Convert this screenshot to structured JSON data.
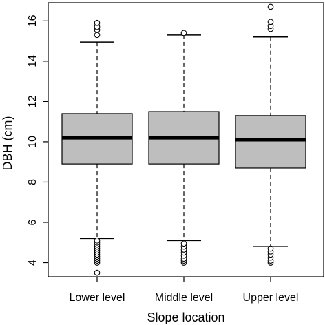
{
  "chart_data": {
    "type": "box",
    "title": "",
    "xlabel": "Slope location",
    "ylabel": "DBH (cm)",
    "ylim": [
      3.3,
      16.9
    ],
    "yticks": [
      "4",
      "6",
      "8",
      "10",
      "12",
      "14",
      "16"
    ],
    "grid": false,
    "box_fill": "#bebebe",
    "categories": [
      "Lower level",
      "Middle level",
      "Upper level"
    ],
    "boxes": [
      {
        "category": "Lower level",
        "whisker_low": 5.2,
        "q1": 8.9,
        "median": 10.2,
        "q3": 11.4,
        "whisker_high": 14.95,
        "outliers_high": [
          15.3,
          15.55,
          15.7,
          15.9
        ],
        "outliers_low": [
          3.5,
          4.0,
          4.1,
          4.2,
          4.3,
          4.4,
          4.5,
          4.6,
          4.7,
          4.8,
          4.9,
          5.0,
          5.1
        ]
      },
      {
        "category": "Middle level",
        "whisker_low": 5.1,
        "q1": 8.9,
        "median": 10.2,
        "q3": 11.5,
        "whisker_high": 15.3,
        "outliers_high": [
          15.4
        ],
        "outliers_low": [
          4.0,
          4.1,
          4.2,
          4.35,
          4.5,
          4.65,
          4.8,
          4.95
        ]
      },
      {
        "category": "Upper level",
        "whisker_low": 4.8,
        "q1": 8.7,
        "median": 10.1,
        "q3": 11.3,
        "whisker_high": 15.2,
        "outliers_high": [
          15.6,
          15.75,
          15.95,
          16.7
        ],
        "outliers_low": [
          4.0,
          4.1,
          4.25,
          4.4,
          4.55,
          4.7
        ]
      }
    ]
  }
}
